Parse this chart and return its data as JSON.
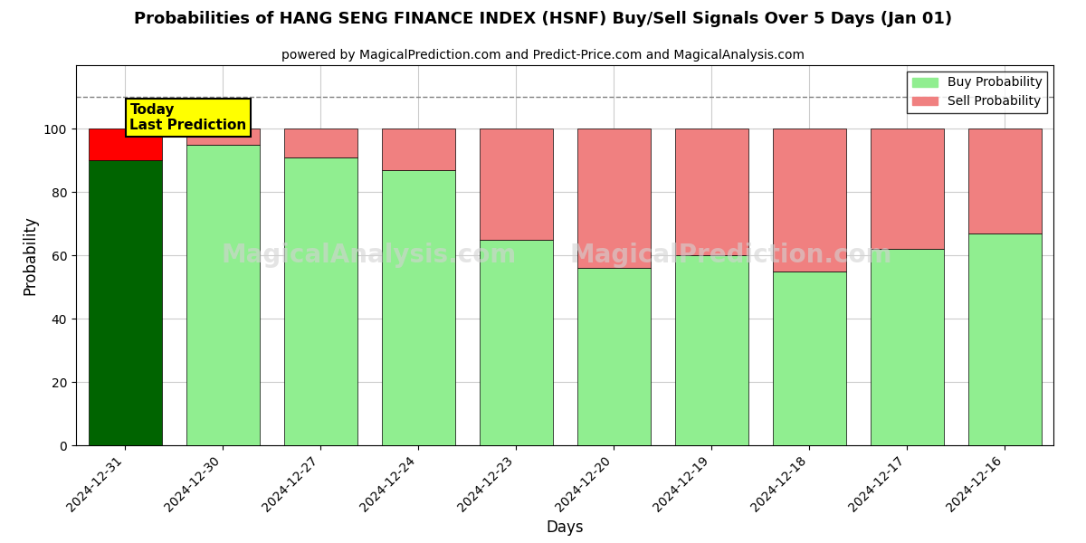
{
  "title": "Probabilities of HANG SENG FINANCE INDEX (HSNF) Buy/Sell Signals Over 5 Days (Jan 01)",
  "subtitle": "powered by MagicalPrediction.com and Predict-Price.com and MagicalAnalysis.com",
  "xlabel": "Days",
  "ylabel": "Probability",
  "watermark1": "MagicalAnalysis.com",
  "watermark2": "MagicalPrediction.com",
  "dates": [
    "2024-12-31",
    "2024-12-30",
    "2024-12-27",
    "2024-12-24",
    "2024-12-23",
    "2024-12-20",
    "2024-12-19",
    "2024-12-18",
    "2024-12-17",
    "2024-12-16"
  ],
  "buy_values": [
    90,
    95,
    91,
    87,
    65,
    56,
    60,
    55,
    62,
    67
  ],
  "sell_values": [
    10,
    5,
    9,
    13,
    35,
    44,
    40,
    45,
    38,
    33
  ],
  "buy_color_first": "#006400",
  "sell_color_first": "#FF0000",
  "buy_color_rest": "#90EE90",
  "sell_color_rest": "#F08080",
  "today_box_color": "#FFFF00",
  "today_box_text": "Today\nLast Prediction",
  "ylim": [
    0,
    120
  ],
  "dashed_line_y": 110,
  "legend_buy_label": "Buy Probability",
  "legend_sell_label": "Sell Probability",
  "bg_color": "#ffffff",
  "grid_color": "#cccccc"
}
